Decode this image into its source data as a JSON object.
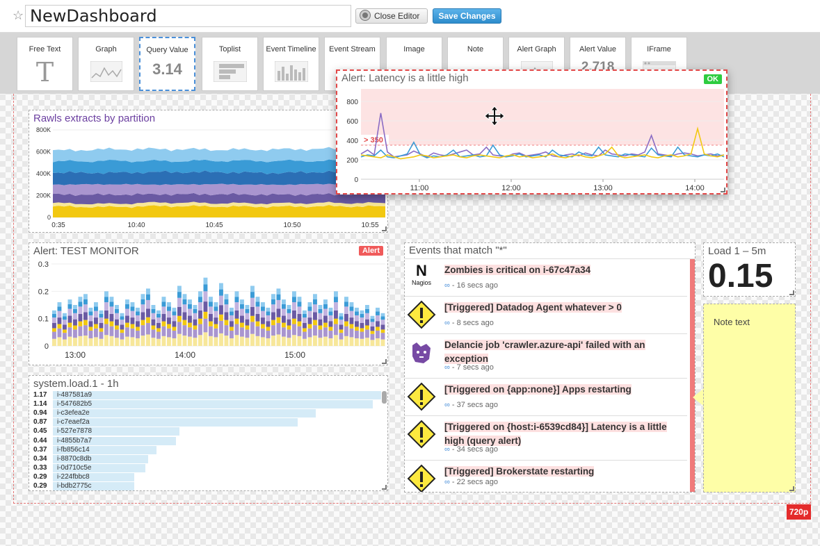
{
  "header": {
    "dashboard_title": "NewDashboard",
    "close_editor_label": "Close Editor",
    "save_label": "Save Changes"
  },
  "palette": {
    "tiles": [
      {
        "label": "Free Text",
        "preview": "T"
      },
      {
        "label": "Graph"
      },
      {
        "label": "Query Value",
        "preview": "3.14"
      },
      {
        "label": "Toplist"
      },
      {
        "label": "Event Timeline"
      },
      {
        "label": "Event Stream"
      },
      {
        "label": "Image"
      },
      {
        "label": "Note"
      },
      {
        "label": "Alert Graph"
      },
      {
        "label": "Alert Value",
        "preview": "2.718"
      },
      {
        "label": "IFrame"
      }
    ]
  },
  "colors": {
    "accent": "#2d8ccc",
    "alert_red": "#e24848",
    "ok_green": "#2ecc40",
    "note_yellow": "#fefea7"
  },
  "widgets": {
    "rawls": {
      "title": "Rawls extracts by partition",
      "chart_data": {
        "type": "area",
        "y_ticks": [
          "800K",
          "600K",
          "400K",
          "200K",
          "0"
        ],
        "ylim": [
          0,
          800000
        ],
        "x_ticks": [
          "0:35",
          "10:40",
          "10:45",
          "10:50",
          "10:55"
        ],
        "series": [
          {
            "color": "#f2c811",
            "values": [
              100000,
              95000,
              105000,
              100000,
              98000,
              102000,
              100000
            ]
          },
          {
            "color": "#f7e79a",
            "values": [
              30000,
              28000,
              32000,
              30000,
              30000,
              31000,
              30000
            ]
          },
          {
            "color": "#6a5aa3",
            "values": [
              80000,
              85000,
              75000,
              82000,
              80000,
              78000,
              85000
            ]
          },
          {
            "color": "#a995cf",
            "values": [
              90000,
              95000,
              88000,
              92000,
              90000,
              95000,
              90000
            ]
          },
          {
            "color": "#2b6fb5",
            "values": [
              110000,
              105000,
              115000,
              110000,
              108000,
              112000,
              110000
            ]
          },
          {
            "color": "#3a9bd6",
            "values": [
              100000,
              110000,
              100000,
              105000,
              110000,
              100000,
              105000
            ]
          },
          {
            "color": "#8fcbef",
            "values": [
              100000,
              105000,
              110000,
              100000,
              105000,
              110000,
              100000
            ]
          }
        ]
      }
    },
    "test_monitor": {
      "title": "Alert: TEST MONITOR",
      "badge": "Alert",
      "chart_data": {
        "type": "bar",
        "stacked": true,
        "y_ticks": [
          "0.3",
          "0.2",
          "0.1",
          "0"
        ],
        "ylim": [
          0,
          0.3
        ],
        "x_ticks": [
          "13:00",
          "14:00",
          "15:00"
        ],
        "totals": [
          0.13,
          0.16,
          0.12,
          0.17,
          0.15,
          0.18,
          0.19,
          0.14,
          0.16,
          0.13,
          0.2,
          0.18,
          0.15,
          0.12,
          0.17,
          0.16,
          0.14,
          0.19,
          0.21,
          0.15,
          0.13,
          0.18,
          0.16,
          0.14,
          0.22,
          0.19,
          0.17,
          0.15,
          0.2,
          0.25,
          0.18,
          0.16,
          0.23,
          0.19,
          0.14,
          0.2,
          0.17,
          0.15,
          0.22,
          0.18,
          0.16,
          0.14,
          0.19,
          0.21,
          0.17,
          0.15,
          0.2,
          0.18,
          0.13,
          0.16,
          0.19,
          0.15,
          0.17,
          0.14,
          0.2,
          0.12,
          0.18,
          0.16,
          0.14,
          0.13,
          0.15,
          0.11,
          0.14,
          0.12
        ]
      }
    },
    "toplist": {
      "title": "system.load.1 - 1h",
      "rows": [
        {
          "value": "1.17",
          "label": "i-487581a9",
          "fraction": 1.0
        },
        {
          "value": "1.14",
          "label": "i-547682b5",
          "fraction": 0.975
        },
        {
          "value": "0.94",
          "label": "i-c3efea2e",
          "fraction": 0.8
        },
        {
          "value": "0.87",
          "label": "i-c7eaef2a",
          "fraction": 0.745
        },
        {
          "value": "0.45",
          "label": "i-527e7878",
          "fraction": 0.385
        },
        {
          "value": "0.44",
          "label": "i-4855b7a7",
          "fraction": 0.376
        },
        {
          "value": "0.37",
          "label": "i-fb856c14",
          "fraction": 0.316
        },
        {
          "value": "0.34",
          "label": "i-8870c8db",
          "fraction": 0.29
        },
        {
          "value": "0.33",
          "label": "i-0d710c5e",
          "fraction": 0.282
        },
        {
          "value": "0.29",
          "label": "i-224fbbc8",
          "fraction": 0.248
        },
        {
          "value": "0.29",
          "label": "i-bdb2775c",
          "fraction": 0.248
        }
      ]
    },
    "events": {
      "title": "Events that match \"*\"",
      "items": [
        {
          "icon": "nagios-logo",
          "icon_text": "N",
          "icon_sub": "Nagios",
          "title": "Zombies is critical on i-67c47a34",
          "time": "- 16 secs ago"
        },
        {
          "icon": "warning-icon",
          "title": "[Triggered] Datadog Agent whatever > 0",
          "time": "- 8 secs ago"
        },
        {
          "icon": "datadog-dog-icon",
          "title": "Delancie job 'crawler.azure-api' failed with an exception",
          "time": "- 7 secs ago"
        },
        {
          "icon": "warning-icon",
          "title": "[Triggered on {app:none}] Apps restarting",
          "time": "- 37 secs ago"
        },
        {
          "icon": "warning-icon",
          "title": "[Triggered on {host:i-6539cd84}] Latency is a little high (query alert)",
          "time": "- 34 secs ago"
        },
        {
          "icon": "warning-icon",
          "title": "[Triggered] Brokerstate restarting",
          "time": "- 22 secs ago"
        }
      ]
    },
    "load": {
      "title": "Load 1 – 5m",
      "value": "0.15"
    },
    "note": {
      "text": "Note text"
    },
    "latency": {
      "title": "Alert: Latency is a little high",
      "badge": "OK",
      "threshold_label": "> 350",
      "chart_data": {
        "type": "line",
        "y_ticks": [
          "800",
          "600",
          "400",
          "200",
          "0"
        ],
        "ylim": [
          0,
          900
        ],
        "x_ticks": [
          "11:00",
          "12:00",
          "13:00",
          "14:00"
        ],
        "threshold": 350,
        "series": [
          {
            "color": "#8a6cc4",
            "values": [
              260,
              300,
              250,
              680,
              280,
              230,
              240,
              250,
              290,
              260,
              230,
              270,
              250,
              240,
              260,
              280,
              300,
              250,
              260,
              330,
              250,
              240,
              230,
              260,
              270,
              240,
              250,
              260,
              280,
              240,
              230,
              250,
              260,
              240,
              270,
              250,
              240,
              300,
              260,
              250,
              240,
              260,
              250,
              280,
              450,
              260,
              250,
              240,
              260,
              270,
              260,
              240,
              250,
              260,
              240,
              250
            ]
          },
          {
            "color": "#3a9bd6",
            "values": [
              230,
              250,
              240,
              300,
              230,
              220,
              240,
              260,
              380,
              250,
              220,
              240,
              230,
              250,
              300,
              230,
              240,
              250,
              230,
              240,
              350,
              250,
              230,
              240,
              260,
              230,
              240,
              250,
              230,
              300,
              250,
              240,
              230,
              280,
              250,
              240,
              330,
              250,
              240,
              230,
              260,
              250,
              240,
              230,
              320,
              250,
              240,
              230,
              330,
              250,
              240,
              230,
              250,
              240,
              260,
              230
            ]
          },
          {
            "color": "#f2c811",
            "values": [
              250,
              240,
              230,
              220,
              250,
              230,
              210,
              220,
              230,
              250,
              240,
              220,
              230,
              240,
              250,
              230,
              220,
              240,
              250,
              240,
              230,
              220,
              240,
              250,
              230,
              240,
              220,
              230,
              240,
              260,
              230,
              220,
              240,
              250,
              230,
              220,
              240,
              260,
              330,
              240,
              220,
              230,
              240,
              250,
              230,
              220,
              240,
              250,
              230,
              240,
              260,
              520,
              260,
              240,
              230,
              250
            ]
          }
        ]
      }
    }
  },
  "canvas": {
    "size_badge": "720p"
  }
}
